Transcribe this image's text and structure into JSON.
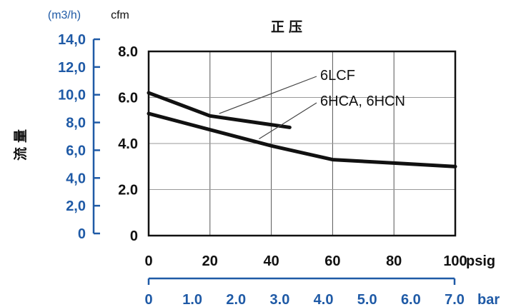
{
  "colors": {
    "primary_axis": "#111111",
    "secondary_axis": "#1f5aa6",
    "grid": "#9a9a9a"
  },
  "chart_data": {
    "type": "line",
    "title": "正压",
    "ylabel_left": "流量",
    "y_secondary": {
      "unit": "(m3/h)",
      "ticks": [
        "14,0",
        "12,0",
        "10,0",
        "8,0",
        "6,0",
        "4,0",
        "2,0",
        "0"
      ],
      "ylim": [
        0,
        14
      ],
      "step": 2
    },
    "y_primary": {
      "unit": "cfm",
      "ticks": [
        "8.0",
        "6.0",
        "4.0",
        "2.0",
        "0"
      ],
      "ylim": [
        0,
        8
      ],
      "step": 2
    },
    "x_primary": {
      "unit": "psig",
      "ticks": [
        "0",
        "20",
        "40",
        "60",
        "80",
        "100"
      ],
      "xlim": [
        0,
        100
      ],
      "step": 20
    },
    "x_secondary": {
      "unit": "bar",
      "ticks": [
        "0",
        "1.0",
        "2.0",
        "3.0",
        "4.0",
        "5.0",
        "6.0",
        "7.0"
      ],
      "xlim": [
        0,
        7
      ],
      "step": 1
    },
    "grid": true,
    "series": [
      {
        "name": "6LCF",
        "x": [
          0,
          20,
          46
        ],
        "y": [
          6.2,
          5.2,
          4.7
        ]
      },
      {
        "name": "6HCA, 6HCN",
        "x": [
          0,
          20,
          40,
          60,
          80,
          100
        ],
        "y": [
          5.3,
          4.6,
          3.9,
          3.3,
          3.15,
          3.0
        ]
      }
    ],
    "annotations": [
      {
        "text": "6LCF",
        "series": "6LCF",
        "point_x": 23,
        "point_y": 5.3
      },
      {
        "text": "6HCA, 6HCN",
        "series": "6HCA, 6HCN",
        "point_x": 36,
        "point_y": 4.2
      }
    ]
  }
}
